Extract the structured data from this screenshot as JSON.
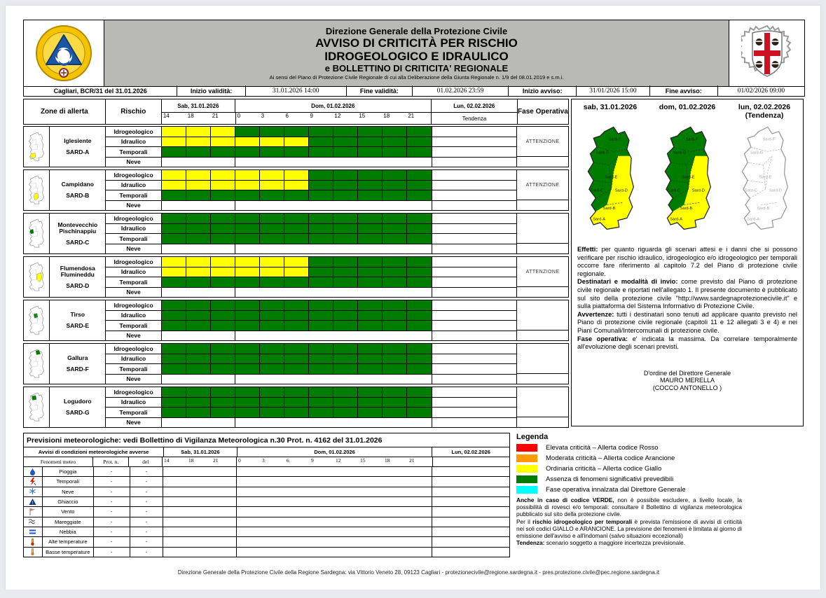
{
  "header": {
    "org": "Direzione Generale della Protezione Civile",
    "title1": "AVVISO DI CRITICITÀ PER RISCHIO",
    "title2": "IDROGEOLOGICO E IDRAULICO",
    "subtitle": "e BOLLETTINO DI CRITICITA' REGIONALE",
    "law_note": "Ai sensi del Piano di Protezione Civile Regionale di cui alla Deliberazione della Giunta Regionale n. 1/9 del 08.01.2019 e s.m.i."
  },
  "info_bar": {
    "doc_ref": "Cagliari, BCR/31 del 31.01.2026",
    "items": [
      {
        "label": "Inizio validità:",
        "value": "31.01.2026 14:00"
      },
      {
        "label": "Fine validità:",
        "value": "01.02.2026 23:59"
      },
      {
        "label": "Inizio avviso:",
        "value": "31/01/2026 15:00"
      },
      {
        "label": "Fine avviso:",
        "value": "01/02/2026 09:00"
      }
    ]
  },
  "alert_table": {
    "zone_col_label": "Zone di allerta",
    "risk_col_label": "Rischio",
    "fase_col_label": "Fase Operativa",
    "days": [
      {
        "label": "Sab, 31.01.2026",
        "ticks": [
          "14",
          "18",
          "21"
        ]
      },
      {
        "label": "Dom, 01.02.2026",
        "ticks": [
          "0",
          "3",
          "6",
          "9",
          "12",
          "15",
          "18",
          "21"
        ]
      },
      {
        "label": "Lun, 02.02.2026",
        "tendenza_label": "Tendenza"
      }
    ],
    "risk_rows": [
      "Idrogeologico",
      "Idraulico",
      "Temporali",
      "Neve"
    ],
    "colors": {
      "Y": "#ffff00",
      "G": "#007c00"
    },
    "zones": [
      {
        "name": "Iglesiente",
        "code": "SARD-A",
        "fase": "ATTENZIONE",
        "highlight": "A",
        "highlight_color": "#ffff00",
        "rows": [
          "YYYGGGGGGGG",
          "YYYYYYGGGGG",
          "GGGGGGGGGGG",
          "..........."
        ]
      },
      {
        "name": "Campidano",
        "code": "SARD-B",
        "fase": "ATTENZIONE",
        "highlight": "B",
        "highlight_color": "#ffff00",
        "rows": [
          "YYYYYYGGGGG",
          "YYYYYYGGGGG",
          "GGGGGGGGGGG",
          "..........."
        ]
      },
      {
        "name": "Montevecchio Pischinappiu",
        "code": "SARD-C",
        "fase": "",
        "highlight": "C",
        "highlight_color": "#007c00",
        "rows": [
          "GGGGGGGGGGG",
          "GGGGGGGGGGG",
          "GGGGGGGGGGG",
          "..........."
        ]
      },
      {
        "name": "Flumendosa Flumineddu",
        "code": "SARD-D",
        "fase": "ATTENZIONE",
        "highlight": "D",
        "highlight_color": "#ffff00",
        "rows": [
          "YYYYYYGGGGG",
          "YYYYYYGGGGG",
          "GGGGGGGGGGG",
          "..........."
        ]
      },
      {
        "name": "Tirso",
        "code": "SARD-E",
        "fase": "",
        "highlight": "E",
        "highlight_color": "#007c00",
        "rows": [
          "GGGGGGGGGGG",
          "GGGGGGGGGGG",
          "GGGGGGGGGGG",
          "..........."
        ]
      },
      {
        "name": "Gallura",
        "code": "SARD-F",
        "fase": "",
        "highlight": "F",
        "highlight_color": "#007c00",
        "rows": [
          "GGGGGGGGGGG",
          "GGGGGGGGGGG",
          "GGGGGGGGGGG",
          "..........."
        ]
      },
      {
        "name": "Logudoro",
        "code": "SARD-G",
        "fase": "",
        "highlight": "G",
        "highlight_color": "#007c00",
        "rows": [
          "GGGGGGGGGGG",
          "GGGGGGGGGGG",
          "GGGGGGGGGGG",
          "..........."
        ]
      }
    ]
  },
  "side_panel": {
    "maps": [
      {
        "title": "sab, 31.01.2026",
        "subtitle": "",
        "filled": true
      },
      {
        "title": "dom, 01.02.2026",
        "subtitle": "",
        "filled": true
      },
      {
        "title": "lun, 02.02.2026",
        "subtitle": "(Tendenza)",
        "filled": false
      }
    ],
    "map_region_labels": [
      "Sard-F",
      "Sard-G",
      "Sard-E",
      "Sard-C",
      "Sard-D",
      "Sard-B",
      "Sard-A"
    ],
    "paragraphs": [
      {
        "lead": "Effetti:",
        "text": " per quanto riguarda gli scenari attesi e i danni che si possono verificare per rischio idraulico, idrogeologico e/o idrogeologico per temporali occorre fare riferimento al capitolo 7.2 del Piano di protezione civile regionale."
      },
      {
        "lead": "Destinatari e modalità di invio:",
        "text": " come previsto dal Piano di protezione civile regionale e riportati nell'allegato 1. Il presente documento è pubblicato sul sito della protezione civile \"http://www.sardegnaprotezionecivile.it\" e sulla piattaforma del Sistema Informativo di Protezione Civile."
      },
      {
        "lead": "Avvertenze:",
        "text": " tutti i destinatari sono tenuti ad applicare quanto previsto nel Piano di protezione civile regionale (capitoli 11 e 12 allegati 3 e 4) e nei Piani Comunali/Intercomunali di protezione civile."
      },
      {
        "lead": "Fase operativa:",
        "text": " e' indicata la massima. Da correlare temporalmente all'evoluzione degli scenari previsti."
      }
    ],
    "signature": [
      "D'ordine del Direttore Generale",
      "MAURO MERELLA",
      "(COCCO ANTONELLO )"
    ]
  },
  "meteo_table": {
    "title": "Previsioni meteorologiche: vedi Bollettino di Vigilanza Meteorologica n.30 Prot. n. 4162 del 31.01.2026",
    "group_label": "Avvisi di condizioni meteorologiche avverse",
    "col_labels": {
      "fenomeni": "Fenomeni meteo",
      "prot": "Prot. n.",
      "del": "del"
    },
    "days": [
      {
        "label": "Sab, 31.01.2026",
        "ticks": [
          "14",
          "18",
          "21"
        ]
      },
      {
        "label": "Dom, 01.02.2026",
        "ticks": [
          "0",
          "3",
          "6",
          "9",
          "12",
          "15",
          "18",
          "21"
        ]
      },
      {
        "label": "Lun, 02.02.2026",
        "ticks": []
      }
    ],
    "rows": [
      {
        "icon": "rain",
        "name": "Pioggia",
        "prot": "-",
        "del": "-"
      },
      {
        "icon": "thunderstorm",
        "name": "Temporali",
        "prot": "-",
        "del": "-"
      },
      {
        "icon": "snow",
        "name": "Neve",
        "prot": "-",
        "del": "-"
      },
      {
        "icon": "ice",
        "name": "Ghiaccio",
        "prot": "-",
        "del": "-"
      },
      {
        "icon": "wind",
        "name": "Vento",
        "prot": "-",
        "del": "-"
      },
      {
        "icon": "sea-storm",
        "name": "Mareggiate",
        "prot": "-",
        "del": "-"
      },
      {
        "icon": "fog",
        "name": "Nebbia",
        "prot": "-",
        "del": "-"
      },
      {
        "icon": "high-temp",
        "name": "Alte temperature",
        "prot": "-",
        "del": "-"
      },
      {
        "icon": "low-temp",
        "name": "Basse temperature",
        "prot": "-",
        "del": "-"
      }
    ]
  },
  "legend": {
    "title": "Legenda",
    "items": [
      {
        "color": "#ff0000",
        "label": "Elevata criticità – Allerta codice Rosso"
      },
      {
        "color": "#ff9900",
        "label": "Moderata criticità – Allerta codice Arancione"
      },
      {
        "color": "#ffff00",
        "label": "Ordinaria criticità – Allerta codice Giallo"
      },
      {
        "color": "#007c00",
        "label": "Assenza di fenomeni significativi prevedibili"
      },
      {
        "color": "#00ffff",
        "label": "Fase operativa innalzata dal Direttore Generale"
      }
    ],
    "notes": [
      [
        {
          "b": 1,
          "t": "Anche in caso di codice VERDE,"
        },
        {
          "b": 0,
          "t": " non è possibile escludere, a livello locale, la possibilità di rovesci e/o temporali: consultare il Bollettino di vigilanza meteorologica pubblicato sul sito della protezione civile."
        }
      ],
      [
        {
          "b": 0,
          "t": "Per il "
        },
        {
          "b": 1,
          "t": "rischio idrogeologico per temporali"
        },
        {
          "b": 0,
          "t": " è prevista l'emissione di avvisi di criticità nei soli codici GIALLO e ARANCIONE. La previsione dei fenomeni è limitata al giorno di emissione dell'avviso e all'indomani (salvo situazioni eccezionali)"
        }
      ],
      [
        {
          "b": 1,
          "t": "Tendenza:"
        },
        {
          "b": 0,
          "t": " scenario soggetto a maggiore incertezza previsionale."
        }
      ]
    ]
  },
  "footer": "Direzione Generale della Protezione Civile della Regione Sardegna: via Vittorio Veneto 28, 09123 Cagliari - protezionecivile@regione.sardegna.it - pres.protezione.civile@pec.regione.sardegna.it"
}
